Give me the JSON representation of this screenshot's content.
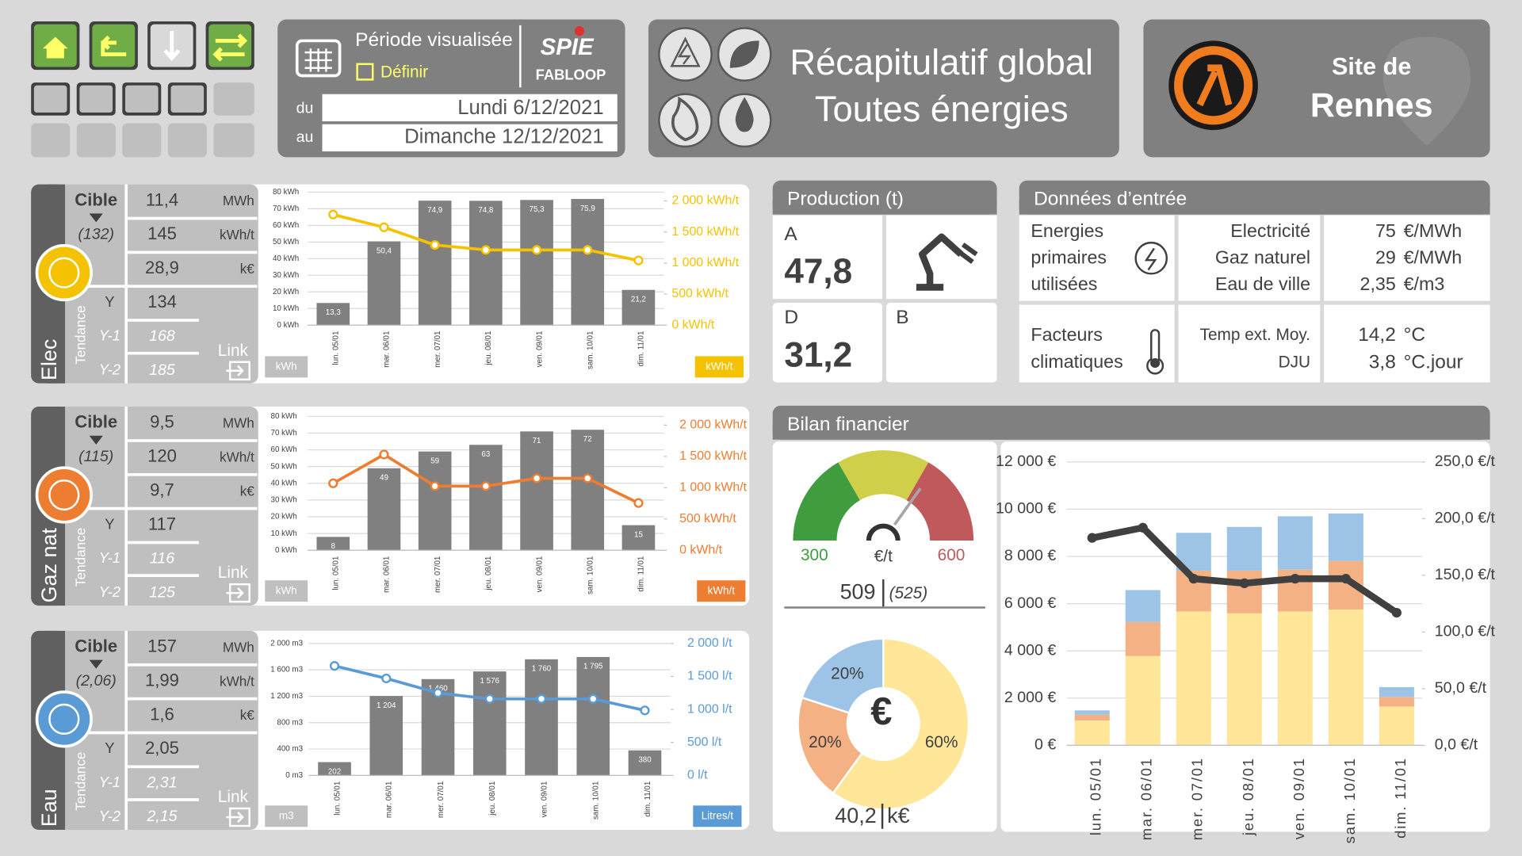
{
  "header": {
    "period": {
      "label": "Période visualisée",
      "define": "Définir",
      "from_label": "du",
      "from": "Lundi 6/12/2021",
      "to_label": "au",
      "to": "Dimanche 12/12/2021"
    },
    "logo": {
      "brand": "SPIE",
      "product": "FABLOOP"
    },
    "title": [
      "Récapitulatif global",
      "Toutes énergies"
    ],
    "site": {
      "label": "Site de",
      "name": "Rennes"
    }
  },
  "energies": [
    {
      "name": "Elec",
      "color": "#f5c200",
      "target_label": "Cible",
      "target": "(132)",
      "kpis": [
        [
          "11,4",
          "MWh"
        ],
        [
          "145",
          "kWh/t"
        ],
        [
          "28,9",
          "k€"
        ]
      ],
      "trend_label": "Tendance",
      "trend": [
        [
          "Y",
          "134"
        ],
        [
          "Y-1",
          "168"
        ],
        [
          "Y-2",
          "185"
        ]
      ],
      "link": "Link"
    },
    {
      "name": "Gaz nat",
      "color": "#ed7d31",
      "target_label": "Cible",
      "target": "(115)",
      "kpis": [
        [
          "9,5",
          "MWh"
        ],
        [
          "120",
          "kWh/t"
        ],
        [
          "9,7",
          "k€"
        ]
      ],
      "trend_label": "Tendance",
      "trend": [
        [
          "Y",
          "117"
        ],
        [
          "Y-1",
          "116"
        ],
        [
          "Y-2",
          "125"
        ]
      ],
      "link": "Link"
    },
    {
      "name": "Eau",
      "color": "#5b9bd5",
      "target_label": "Cible",
      "target": "(2,06)",
      "kpis": [
        [
          "157",
          "MWh"
        ],
        [
          "1,99",
          "kWh/t"
        ],
        [
          "1,6",
          "k€"
        ]
      ],
      "trend_label": "Tendance",
      "trend": [
        [
          "Y",
          "2,05"
        ],
        [
          "Y-1",
          "2,31"
        ],
        [
          "Y-2",
          "2,15"
        ]
      ],
      "link": "Link"
    }
  ],
  "production": {
    "title": "Production (t)",
    "cells": [
      {
        "label": "A",
        "value": "47,8"
      },
      {
        "label": "D",
        "value": "31,2"
      },
      {
        "label": "B"
      }
    ]
  },
  "inputs": {
    "title": "Données d’entrée",
    "energy_label": [
      "Energies",
      "primaires",
      "utilisées"
    ],
    "energy_rows": [
      [
        "Electricité",
        "75",
        "€/MWh"
      ],
      [
        "Gaz naturel",
        "29",
        "€/MWh"
      ],
      [
        "Eau de ville",
        "2,35",
        "€/m3"
      ]
    ],
    "climate_label": [
      "Facteurs",
      "climatiques"
    ],
    "climate_rows": [
      [
        "Temp ext. Moy.",
        "14,2",
        "°C"
      ],
      [
        "DJU",
        "3,8",
        "°C.jour"
      ]
    ]
  },
  "finance": {
    "title": "Bilan financier"
  },
  "chart_data": [
    {
      "type": "bar_line",
      "categories": [
        "lun. 05/01",
        "mar. 06/01",
        "mer. 07/01",
        "jeu. 08/01",
        "ven. 09/01",
        "sam. 10/01",
        "dim. 11/01"
      ],
      "series": [
        {
          "type": "bar",
          "color": "#808080",
          "values": [
            13.3,
            50.4,
            74.9,
            74.8,
            75.3,
            75.9,
            21.2
          ],
          "value_labels": [
            "13,3",
            "50,4",
            "74,9",
            "74,8",
            "75,3",
            "75,9",
            "21,2"
          ]
        },
        {
          "type": "line",
          "axis": "y2",
          "color": "#f5c200",
          "values": [
            1780,
            1575,
            1290,
            1210,
            1210,
            1210,
            1040
          ]
        }
      ],
      "ylim": [
        0,
        80
      ],
      "yticks": [
        {
          "value": 0,
          "label": "0 kWh"
        },
        {
          "value": 10,
          "label": "10 kWh"
        },
        {
          "value": 20,
          "label": "20 kWh"
        },
        {
          "value": 30,
          "label": "30 kWh"
        },
        {
          "value": 40,
          "label": "40 kWh"
        },
        {
          "value": 50,
          "label": "50 kWh"
        },
        {
          "value": 60,
          "label": "60 kWh"
        },
        {
          "value": 70,
          "label": "70 kWh"
        },
        {
          "value": 80,
          "label": "80 kWh"
        }
      ],
      "y2lim": [
        0,
        2140
      ],
      "y2ticks": [
        {
          "value": 0,
          "label": "0 kWh/t"
        },
        {
          "value": 500,
          "label": "500 kWh/t"
        },
        {
          "value": 1000,
          "label": "1 000 kWh/t"
        },
        {
          "value": 1500,
          "label": "1 500 kWh/t"
        },
        {
          "value": 2000,
          "label": "2 000 kWh/t"
        }
      ],
      "y_label": "kWh",
      "y2_label": "kWh/t",
      "grid": true
    },
    {
      "type": "bar_line",
      "categories": [
        "lun. 05/01",
        "mar. 06/01",
        "mer. 07/01",
        "jeu. 08/01",
        "ven. 09/01",
        "sam. 10/01",
        "dim. 11/01"
      ],
      "series": [
        {
          "type": "bar",
          "color": "#808080",
          "values": [
            8,
            49,
            59,
            63,
            71,
            72,
            15
          ]
        },
        {
          "type": "line",
          "axis": "y2",
          "color": "#ed7d31",
          "values": [
            1070,
            1530,
            1025,
            1025,
            1150,
            1150,
            755
          ]
        }
      ],
      "ylim": [
        0,
        80
      ],
      "yticks": [
        {
          "value": 0,
          "label": "0 kWh"
        },
        {
          "value": 10,
          "label": "10 kWh"
        },
        {
          "value": 20,
          "label": "20 kWh"
        },
        {
          "value": 30,
          "label": "30 kWh"
        },
        {
          "value": 40,
          "label": "40 kWh"
        },
        {
          "value": 50,
          "label": "50 kWh"
        },
        {
          "value": 60,
          "label": "60 kWh"
        },
        {
          "value": 70,
          "label": "70 kWh"
        },
        {
          "value": 80,
          "label": "80 kWh"
        }
      ],
      "y2lim": [
        0,
        2140
      ],
      "y2ticks": [
        {
          "value": 0,
          "label": "0 kWh/t"
        },
        {
          "value": 500,
          "label": "500 kWh/t"
        },
        {
          "value": 1000,
          "label": "1 000 kWh/t"
        },
        {
          "value": 1500,
          "label": "1 500 kWh/t"
        },
        {
          "value": 2000,
          "label": "2 000 kWh/t"
        }
      ],
      "y_label": "kWh",
      "y2_label": "kWh/t",
      "grid": true
    },
    {
      "type": "bar_line",
      "categories": [
        "lun. 05/01",
        "mar. 06/01",
        "mer. 07/01",
        "jeu. 08/01",
        "ven. 09/01",
        "sam. 10/01",
        "dim. 11/01"
      ],
      "series": [
        {
          "type": "bar",
          "color": "#808080",
          "values": [
            202,
            1204,
            1460,
            1576,
            1760,
            1795,
            380
          ],
          "value_labels": [
            "202",
            "1 204",
            "1 460",
            "1 576",
            "1 760",
            "1 795",
            "380"
          ]
        },
        {
          "type": "line",
          "axis": "y2",
          "color": "#5b9bd5",
          "values": [
            1660,
            1470,
            1250,
            1160,
            1160,
            1160,
            985
          ]
        }
      ],
      "ylim": [
        0,
        2000
      ],
      "yticks": [
        {
          "value": 0,
          "label": "0 m3"
        },
        {
          "value": 400,
          "label": "400 m3"
        },
        {
          "value": 800,
          "label": "800 m3"
        },
        {
          "value": 1200,
          "label": "1 200 m3"
        },
        {
          "value": 1600,
          "label": "1 600 m3"
        },
        {
          "value": 2000,
          "label": "2 000 m3"
        }
      ],
      "y2lim": [
        0,
        2000
      ],
      "y2ticks": [
        {
          "value": 0,
          "label": "0 l/t"
        },
        {
          "value": 500,
          "label": "500 l/t"
        },
        {
          "value": 1000,
          "label": "1 000 l/t"
        },
        {
          "value": 1500,
          "label": "1 500 l/t"
        },
        {
          "value": 2000,
          "label": "2 000 l/t"
        }
      ],
      "y_label": "m3",
      "y2_label": "Litres/t",
      "grid": true
    },
    {
      "type": "gauge",
      "range": [
        300,
        600
      ],
      "value": 509,
      "unit": "€/t",
      "target_label": "(525)",
      "thresholds": [
        400,
        500
      ],
      "colors": [
        "#3f9c3f",
        "#cfcf4a",
        "#c0595b"
      ]
    },
    {
      "type": "donut",
      "values": [
        60,
        20,
        20
      ],
      "value_labels": [
        "60%",
        "20%",
        "20%"
      ],
      "colors": [
        "#ffe699",
        "#f4b183",
        "#9dc3e6"
      ],
      "center_label": "€",
      "total": "40,2",
      "total_unit": "k€"
    },
    {
      "type": "stacked_bar_line",
      "categories": [
        "lun. 05/01",
        "mar. 06/01",
        "mer. 07/01",
        "jeu. 08/01",
        "ven. 09/01",
        "sam. 10/01",
        "dim. 11/01"
      ],
      "series": [
        {
          "type": "bar",
          "color": "#ffe699",
          "values": [
            1050,
            3780,
            5670,
            5590,
            5670,
            5750,
            1645
          ]
        },
        {
          "type": "bar",
          "color": "#f4b183",
          "values": [
            250,
            1440,
            1730,
            1810,
            1770,
            2060,
            410
          ]
        },
        {
          "type": "bar",
          "color": "#9dc3e6",
          "values": [
            180,
            1355,
            1600,
            1850,
            2260,
            2010,
            410
          ]
        },
        {
          "type": "line",
          "axis": "y2",
          "color": "#404040",
          "values": [
            183,
            192,
            147,
            143,
            147,
            147,
            117
          ]
        }
      ],
      "ylim": [
        0,
        12000
      ],
      "yticks": [
        {
          "value": 0,
          "label": "0 €"
        },
        {
          "value": 2000,
          "label": "2 000 €"
        },
        {
          "value": 4000,
          "label": "4 000 €"
        },
        {
          "value": 6000,
          "label": "6 000 €"
        },
        {
          "value": 8000,
          "label": "8 000 €"
        },
        {
          "value": 10000,
          "label": "10 000 €"
        },
        {
          "value": 12000,
          "label": "12 000 €"
        }
      ],
      "y2lim": [
        0,
        250
      ],
      "y2ticks": [
        {
          "value": 0,
          "label": "0,0 €/t"
        },
        {
          "value": 50,
          "label": "50,0 €/t"
        },
        {
          "value": 100,
          "label": "100,0 €/t"
        },
        {
          "value": 150,
          "label": "150,0 €/t"
        },
        {
          "value": 200,
          "label": "200,0 €/t"
        },
        {
          "value": 250,
          "label": "250,0 €/t"
        }
      ],
      "grid": true
    }
  ]
}
